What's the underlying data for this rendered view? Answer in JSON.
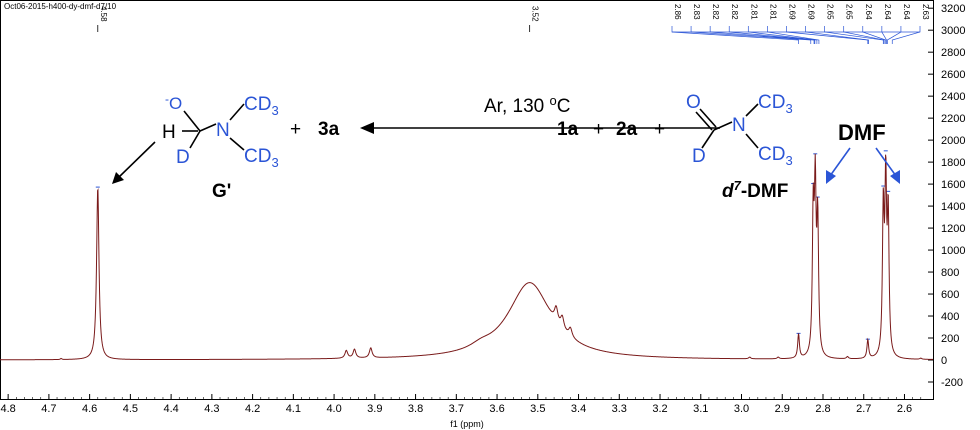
{
  "header": {
    "file_label": "Oct06-2015-h400-dy-dmf-d7/10"
  },
  "peak_labels": {
    "left": "4.58",
    "middle": "3.52",
    "right_cluster": [
      "2.86",
      "2.83",
      "2.82",
      "2.82",
      "2.81",
      "2.81",
      "2.69",
      "2.69",
      "2.65",
      "2.65",
      "2.64",
      "2.64",
      "2.64",
      "2.63"
    ]
  },
  "scheme": {
    "left_molecule": {
      "o_minus": "-O",
      "h": "H",
      "n": "N",
      "cd3_top": "CD3",
      "cd3_bottom": "CD3",
      "d": "D",
      "name": "G'"
    },
    "plus1": "+",
    "product_3a": "3a",
    "conditions": "Ar, 130 oC",
    "reactant_1a": "1a",
    "plus2": "+",
    "reactant_2a": "2a",
    "plus3": "+",
    "right_molecule": {
      "o": "O",
      "n": "N",
      "cd3_top": "CD3",
      "cd3_bottom": "CD3",
      "d": "D",
      "name": "d7-DMF"
    },
    "dmf_label": "DMF"
  },
  "chart_data": {
    "type": "line",
    "title": "",
    "xlabel": "f1 (ppm)",
    "ylabel": "",
    "xlim": [
      4.82,
      2.53
    ],
    "ylim": [
      -250,
      3300
    ],
    "x_reversed": true,
    "x_ticks": [
      4.8,
      4.7,
      4.6,
      4.5,
      4.4,
      4.3,
      4.2,
      4.1,
      4.0,
      3.9,
      3.8,
      3.7,
      3.6,
      3.5,
      3.4,
      3.3,
      3.2,
      3.1,
      3.0,
      2.9,
      2.8,
      2.7,
      2.6
    ],
    "y_ticks": [
      -200,
      0,
      200,
      400,
      600,
      800,
      1000,
      1200,
      1400,
      1600,
      1800,
      2000,
      2200,
      2400,
      2600,
      2800,
      3000,
      3200
    ],
    "colors": {
      "spectrum": "#7a1a1a",
      "annotation": "#2b55d6"
    },
    "series": [
      {
        "peaks": [
          {
            "x": 4.67,
            "h": 10,
            "w": 0.002
          },
          {
            "x": 4.58,
            "h": 1570,
            "w": 0.0035
          },
          {
            "x": 3.97,
            "h": 70,
            "w": 0.004
          },
          {
            "x": 3.95,
            "h": 80,
            "w": 0.004
          },
          {
            "x": 3.91,
            "h": 90,
            "w": 0.004
          },
          {
            "x": 3.52,
            "h": 700,
            "w": 0.065
          },
          {
            "x": 3.455,
            "h": 130,
            "w": 0.005
          },
          {
            "x": 3.44,
            "h": 110,
            "w": 0.005
          },
          {
            "x": 3.42,
            "h": 80,
            "w": 0.005
          },
          {
            "x": 3.64,
            "h": 40,
            "w": 0.03
          },
          {
            "x": 2.98,
            "h": 15,
            "w": 0.003
          },
          {
            "x": 2.91,
            "h": 15,
            "w": 0.003
          },
          {
            "x": 2.86,
            "h": 220,
            "w": 0.0025
          },
          {
            "x": 2.824,
            "h": 1250,
            "w": 0.0025
          },
          {
            "x": 2.819,
            "h": 1440,
            "w": 0.0025
          },
          {
            "x": 2.813,
            "h": 1200,
            "w": 0.0025
          },
          {
            "x": 2.74,
            "h": 20,
            "w": 0.003
          },
          {
            "x": 2.69,
            "h": 170,
            "w": 0.0025
          },
          {
            "x": 2.652,
            "h": 1300,
            "w": 0.0025
          },
          {
            "x": 2.646,
            "h": 1520,
            "w": 0.0025
          },
          {
            "x": 2.64,
            "h": 1250,
            "w": 0.0025
          },
          {
            "x": 2.56,
            "h": 10,
            "w": 0.003
          }
        ],
        "baseline": 0
      }
    ]
  }
}
